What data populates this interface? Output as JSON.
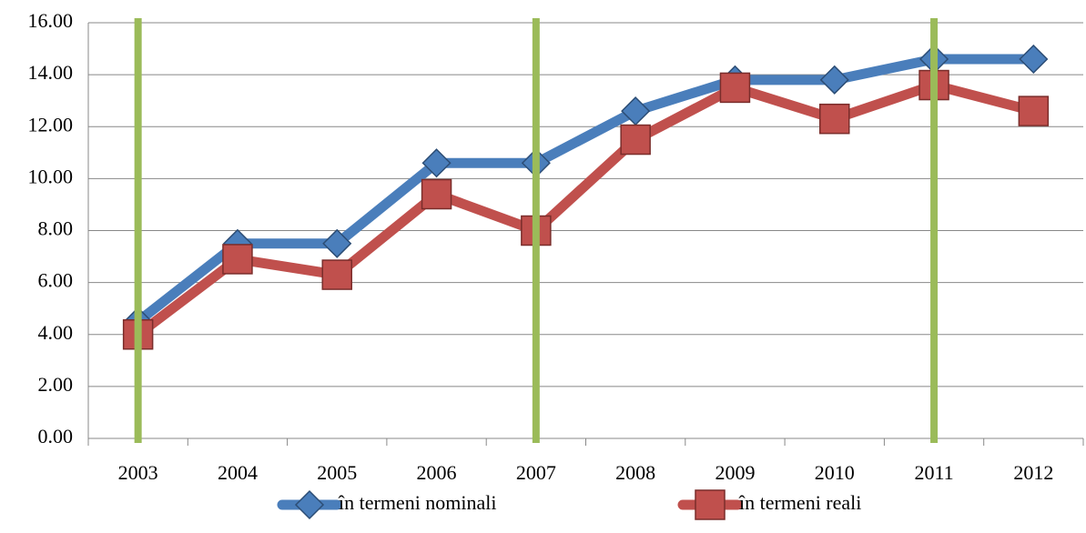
{
  "chart_data": {
    "type": "line",
    "categories": [
      "2003",
      "2004",
      "2005",
      "2006",
      "2007",
      "2008",
      "2009",
      "2010",
      "2011",
      "2012"
    ],
    "series": [
      {
        "name": "în termeni nominali",
        "color": "#4a7ebb",
        "marker": "diamond",
        "values": [
          4.5,
          7.5,
          7.5,
          10.6,
          10.6,
          12.6,
          13.8,
          13.8,
          14.6,
          14.6
        ]
      },
      {
        "name": "în termeni reali",
        "color": "#c0504d",
        "marker": "square",
        "values": [
          4.0,
          6.9,
          6.3,
          9.4,
          8.0,
          11.5,
          13.5,
          12.3,
          13.6,
          12.6
        ]
      }
    ],
    "ylim": [
      0,
      16
    ],
    "yticks": [
      {
        "value": 0,
        "label": "0.00"
      },
      {
        "value": 2,
        "label": "2.00"
      },
      {
        "value": 4,
        "label": "4.00"
      },
      {
        "value": 6,
        "label": "6.00"
      },
      {
        "value": 8,
        "label": "8.00"
      },
      {
        "value": 10,
        "label": "10.00"
      },
      {
        "value": 12,
        "label": "12.00"
      },
      {
        "value": 14,
        "label": "14.00"
      },
      {
        "value": 16,
        "label": "16.00"
      }
    ],
    "grid": true,
    "legend": "bottom",
    "highlight": {
      "indices": [
        0,
        4,
        8
      ],
      "color": "#9bbb59"
    }
  }
}
